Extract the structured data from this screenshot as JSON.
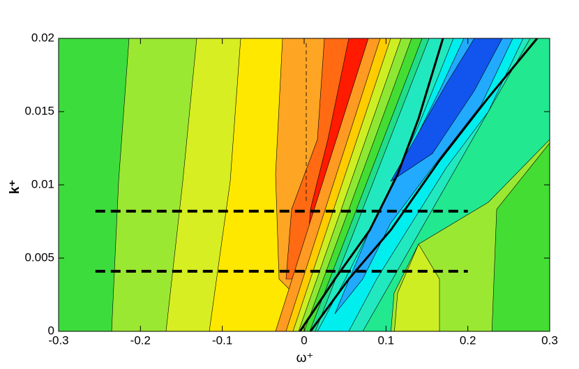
{
  "chart_data": {
    "type": "contour",
    "x_label": "ω⁺",
    "y_label": "k⁺",
    "xlim": [
      -0.3,
      0.3
    ],
    "ylim": [
      0,
      0.02
    ],
    "xticks": [
      -0.3,
      -0.2,
      -0.1,
      0,
      0.1,
      0.2,
      0.3
    ],
    "yticks": [
      0,
      0.005,
      0.01,
      0.015,
      0.02
    ],
    "lines": [
      {
        "x": [
          -0.255,
          0.2
        ],
        "y": [
          0.0082,
          0.0082
        ],
        "color": "#000000",
        "style": "dashed"
      },
      {
        "x": [
          -0.255,
          0.2
        ],
        "y": [
          0.0041,
          0.0041
        ],
        "color": "#000000",
        "style": "dashed"
      }
    ]
  }
}
